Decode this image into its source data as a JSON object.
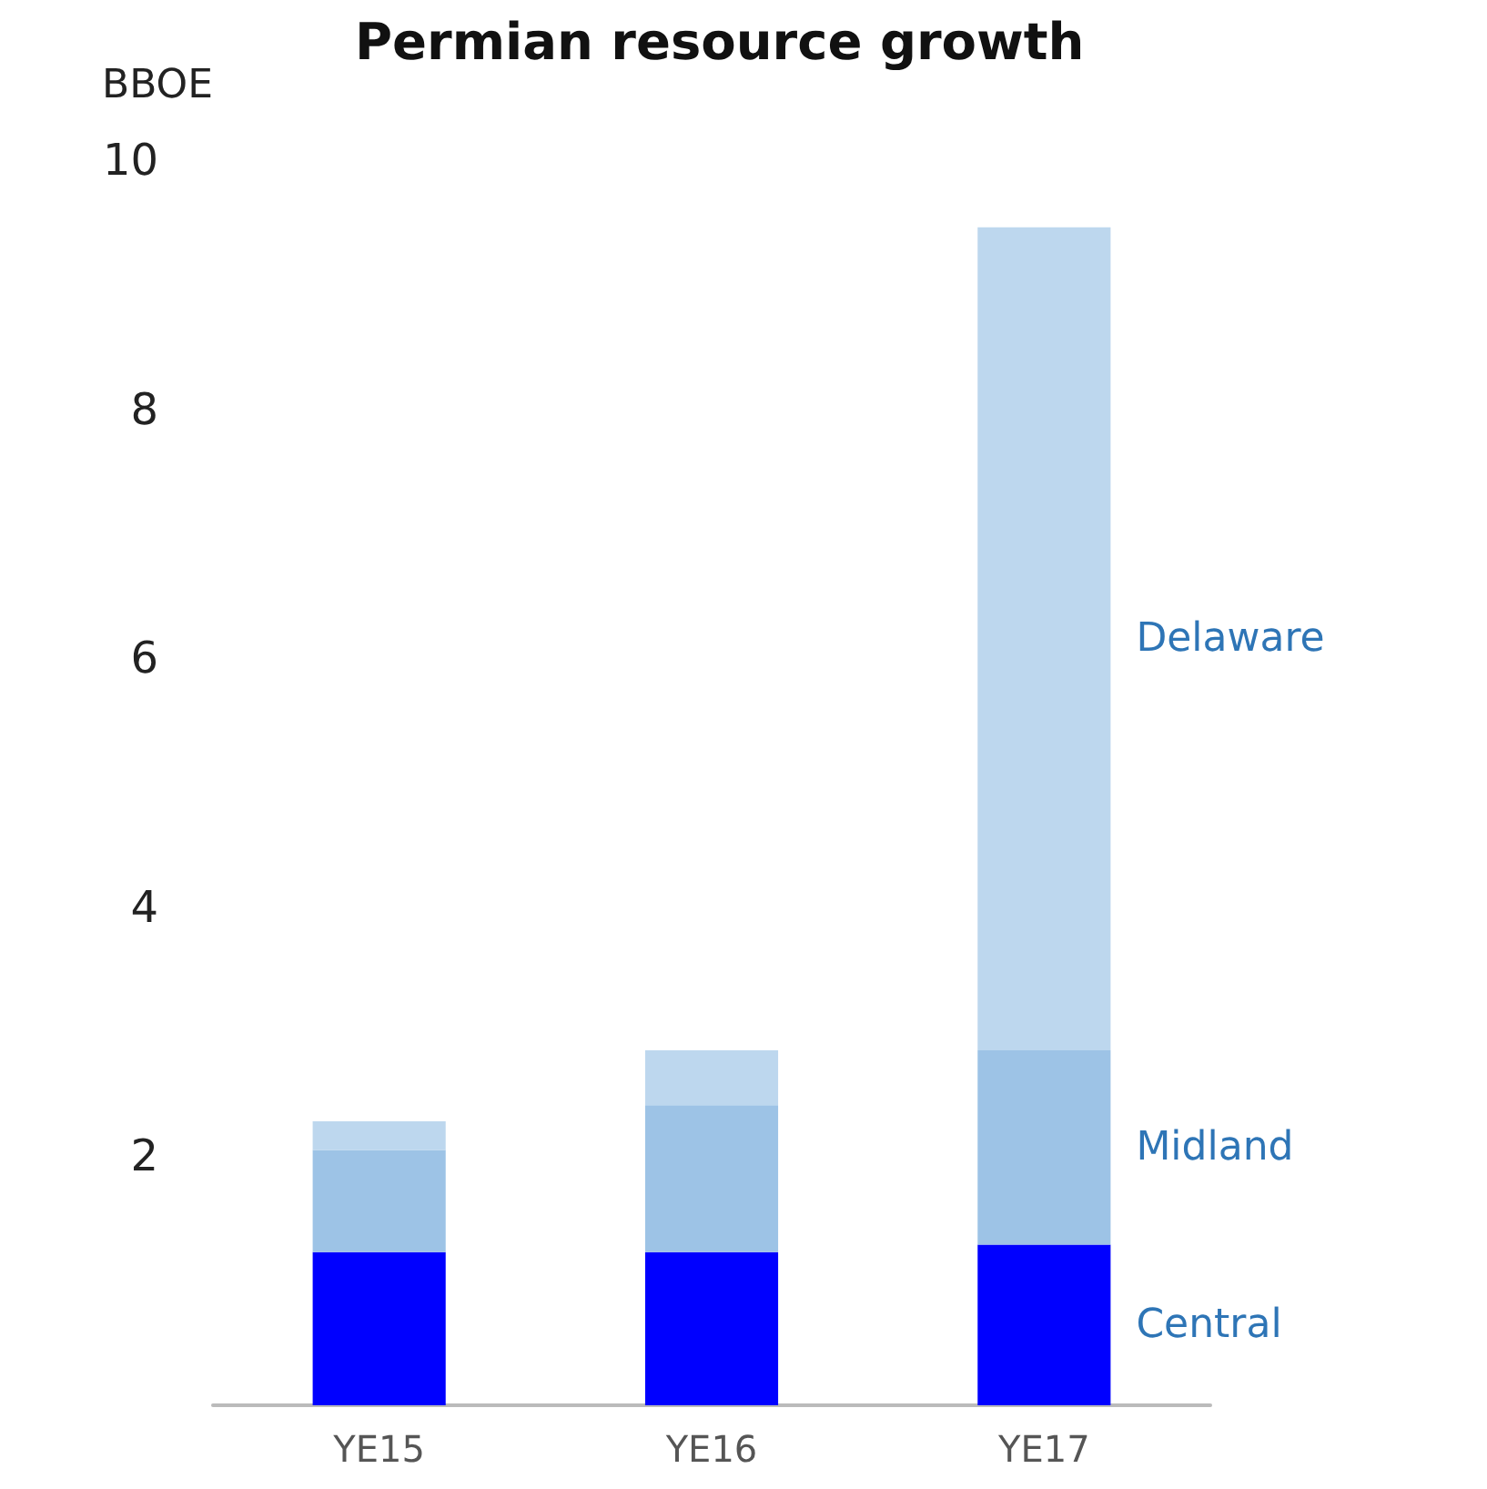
{
  "chart_data": {
    "type": "bar",
    "title": "Permian resource growth",
    "ylabel": "BBOE",
    "categories": [
      "YE15",
      "YE16",
      "YE17"
    ],
    "stacked": true,
    "legend": false,
    "grid": false,
    "ylim": [
      0,
      10
    ],
    "yticks": [
      2,
      4,
      6,
      8,
      10
    ],
    "series": [
      {
        "name": "Central",
        "color": "#0000ff",
        "values": [
          1.23,
          1.23,
          1.29
        ]
      },
      {
        "name": "Midland",
        "color": "#9dc3e6",
        "values": [
          0.82,
          1.18,
          1.56
        ]
      },
      {
        "name": "Delaware",
        "color": "#bdd7ee",
        "values": [
          0.23,
          0.44,
          6.61
        ]
      }
    ]
  }
}
